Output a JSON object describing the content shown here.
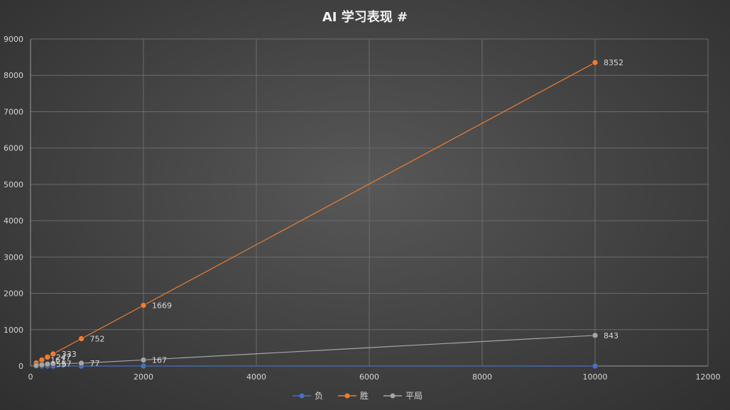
{
  "chart_data": {
    "type": "scatter",
    "title": "AI 学习表现 #",
    "xlabel": "",
    "ylabel": "",
    "xlim": [
      0,
      12000
    ],
    "ylim": [
      0,
      9000
    ],
    "x_ticks": [
      0,
      2000,
      4000,
      6000,
      8000,
      10000,
      12000
    ],
    "y_ticks": [
      0,
      1000,
      2000,
      3000,
      4000,
      5000,
      6000,
      7000,
      8000,
      9000
    ],
    "grid": true,
    "legend_position": "bottom",
    "x": [
      100,
      200,
      300,
      400,
      900,
      2000,
      10000
    ],
    "series": [
      {
        "name": "负",
        "color": "#4472c4",
        "values": [
          0,
          0,
          0,
          0,
          0,
          0,
          0
        ],
        "labels": [
          false,
          false,
          false,
          false,
          false,
          false,
          false
        ]
      },
      {
        "name": "胜",
        "color": "#ed7d31",
        "values": [
          83,
          167,
          247,
          333,
          752,
          1669,
          8352
        ],
        "labels": [
          false,
          true,
          true,
          true,
          true,
          true,
          true
        ]
      },
      {
        "name": "平局",
        "color": "#a5a5a5",
        "values": [
          17,
          33,
          53,
          67,
          77,
          167,
          843
        ],
        "labels": [
          false,
          false,
          true,
          true,
          true,
          true,
          true
        ]
      }
    ]
  }
}
